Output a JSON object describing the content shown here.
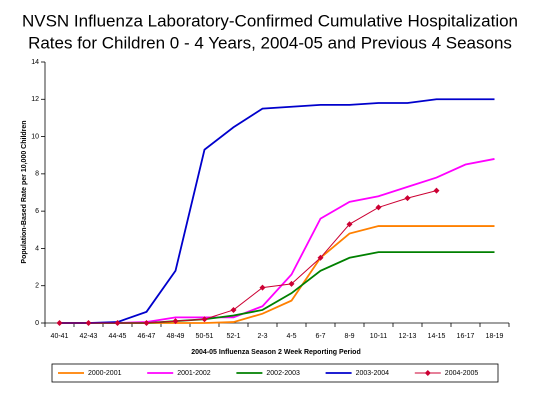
{
  "chart_data": {
    "type": "line",
    "title": [
      "NVSN Influenza Laboratory-Confirmed Cumulative Hospitalization",
      "Rates for Children 0  - 4 Years, 2004-05 and Previous 4 Seasons"
    ],
    "x_label": "2004-05 Influenza Season 2 Week Reporting Period",
    "y_label": "Population-Based Rate per 10,000 Children",
    "categories": [
      "40-41",
      "42-43",
      "44-45",
      "46-47",
      "48-49",
      "50-51",
      "52-1",
      "2-3",
      "4-5",
      "6-7",
      "8-9",
      "10-11",
      "12-13",
      "14-15",
      "16-17",
      "18-19"
    ],
    "ylim": [
      0,
      14
    ],
    "yticks": [
      0,
      2,
      4,
      6,
      8,
      10,
      12,
      14
    ],
    "legend": "bottom",
    "series": [
      {
        "name": "2000-2001",
        "color": "#ff8000",
        "values": [
          0,
          0,
          0,
          0,
          0,
          0,
          0.05,
          0.5,
          1.2,
          3.5,
          4.8,
          5.2,
          5.2,
          5.2,
          5.2,
          5.2
        ]
      },
      {
        "name": "2001-2002",
        "color": "#ff00ff",
        "values": [
          0,
          0,
          0,
          0.05,
          0.3,
          0.3,
          0.3,
          0.9,
          2.6,
          5.6,
          6.5,
          6.8,
          7.3,
          7.8,
          8.5,
          8.8
        ]
      },
      {
        "name": "2002-2003",
        "color": "#008000",
        "values": [
          0,
          0,
          0,
          0,
          0.1,
          0.2,
          0.4,
          0.7,
          1.6,
          2.8,
          3.5,
          3.8,
          3.8,
          3.8,
          3.8,
          3.8
        ]
      },
      {
        "name": "2003-2004",
        "color": "#0000cc",
        "values": [
          0,
          0,
          0.05,
          0.6,
          2.8,
          9.3,
          10.5,
          11.5,
          11.6,
          11.7,
          11.7,
          11.8,
          11.8,
          12.0,
          12.0,
          12.0
        ]
      },
      {
        "name": "2004-2005",
        "color": "#cc0033",
        "marker": "diamond",
        "values": [
          0,
          0,
          0,
          0,
          0.1,
          0.2,
          0.7,
          1.9,
          2.1,
          3.5,
          5.3,
          6.2,
          6.7,
          7.1,
          null,
          null
        ]
      }
    ]
  }
}
